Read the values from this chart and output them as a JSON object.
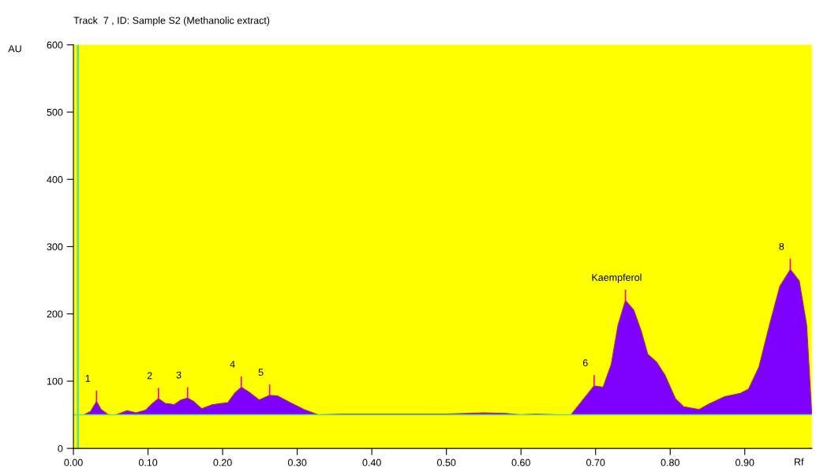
{
  "chart_data": {
    "type": "area",
    "title": "Track  7 , ID: Sample S2 (Methanolic extract)",
    "xlabel": "Rf",
    "ylabel": "AU",
    "series": [
      {
        "color": "#8000ff",
        "x": [
          0.0,
          0.014,
          0.023,
          0.031,
          0.037,
          0.047,
          0.057,
          0.072,
          0.084,
          0.097,
          0.105,
          0.114,
          0.123,
          0.13,
          0.135,
          0.144,
          0.153,
          0.161,
          0.172,
          0.179,
          0.186,
          0.193,
          0.207,
          0.216,
          0.225,
          0.235,
          0.249,
          0.263,
          0.274,
          0.291,
          0.309,
          0.328,
          0.36,
          0.4,
          0.45,
          0.5,
          0.55,
          0.58,
          0.6,
          0.62,
          0.65,
          0.667,
          0.698,
          0.71,
          0.721,
          0.73,
          0.74,
          0.751,
          0.761,
          0.77,
          0.782,
          0.793,
          0.807,
          0.818,
          0.839,
          0.852,
          0.873,
          0.894,
          0.905,
          0.919,
          0.933,
          0.947,
          0.961,
          0.973,
          0.983,
          0.988,
          0.99
        ],
        "values": [
          50,
          50,
          55,
          70,
          58,
          50,
          50,
          56,
          53,
          57,
          66,
          74,
          67,
          66,
          65,
          72,
          75,
          70,
          59,
          62,
          65,
          66,
          68,
          82,
          91,
          84,
          72,
          79,
          78,
          68,
          58,
          50,
          51,
          51,
          51,
          51,
          53,
          52,
          50,
          51,
          50,
          50,
          93,
          91,
          125,
          183,
          220,
          206,
          175,
          140,
          128,
          109,
          74,
          62,
          58,
          66,
          77,
          82,
          88,
          121,
          183,
          241,
          266,
          249,
          183,
          86,
          50
        ]
      }
    ],
    "xlim": [
      0,
      0.99
    ],
    "ylim": [
      0,
      600
    ],
    "xticks": [
      {
        "value": 0,
        "label": "0.00"
      },
      {
        "value": 0.1,
        "label": "0.10"
      },
      {
        "value": 0.2,
        "label": "0.20"
      },
      {
        "value": 0.3,
        "label": "0.30"
      },
      {
        "value": 0.4,
        "label": "0.40"
      },
      {
        "value": 0.5,
        "label": "0.50"
      },
      {
        "value": 0.6,
        "label": "0.60"
      },
      {
        "value": 0.7,
        "label": "0.70"
      },
      {
        "value": 0.8,
        "label": "0.80"
      },
      {
        "value": 0.9,
        "label": "0.90"
      }
    ],
    "yticks": [
      0,
      100,
      200,
      300,
      400,
      500,
      600
    ],
    "ref_lines": [
      {
        "axis": "y",
        "value": 50,
        "color": "#66dd88"
      },
      {
        "axis": "x",
        "value": 0.006,
        "color": "#66dd88"
      }
    ],
    "annotations": [
      {
        "text": "1",
        "x": 0.031,
        "y": 70
      },
      {
        "text": "2",
        "x": 0.114,
        "y": 74
      },
      {
        "text": "3",
        "x": 0.153,
        "y": 75
      },
      {
        "text": "4",
        "x": 0.225,
        "y": 91
      },
      {
        "text": "5",
        "x": 0.263,
        "y": 79
      },
      {
        "text": "6",
        "x": 0.698,
        "y": 93
      },
      {
        "text": "Kaempferol",
        "x": 0.74,
        "y": 220
      },
      {
        "text": "8",
        "x": 0.961,
        "y": 266
      }
    ],
    "grid": false,
    "legend": false
  }
}
